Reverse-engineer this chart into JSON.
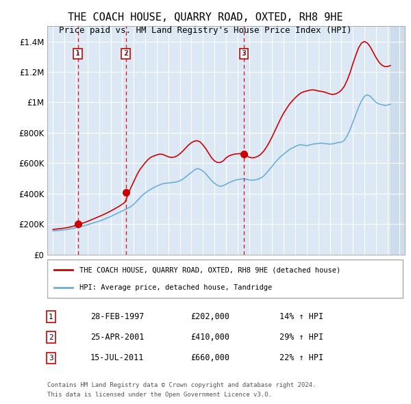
{
  "title": "THE COACH HOUSE, QUARRY ROAD, OXTED, RH8 9HE",
  "subtitle": "Price paid vs. HM Land Registry's House Price Index (HPI)",
  "legend_line1": "THE COACH HOUSE, QUARRY ROAD, OXTED, RH8 9HE (detached house)",
  "legend_line2": "HPI: Average price, detached house, Tandridge",
  "footer1": "Contains HM Land Registry data © Crown copyright and database right 2024.",
  "footer2": "This data is licensed under the Open Government Licence v3.0.",
  "purchases": [
    {
      "num": 1,
      "date": "28-FEB-1997",
      "price": 202000,
      "hpi_pct": "14%",
      "year": 1997.15
    },
    {
      "num": 2,
      "date": "25-APR-2001",
      "price": 410000,
      "hpi_pct": "29%",
      "year": 2001.32
    },
    {
      "num": 3,
      "date": "15-JUL-2011",
      "price": 660000,
      "hpi_pct": "22%",
      "year": 2011.54
    }
  ],
  "hpi_color": "#6baed6",
  "price_color": "#cc0000",
  "purchase_dot_color": "#cc0000",
  "background_color": "#dce9f5",
  "hatch_color": "#c8d8e8",
  "dashed_line_color": "#cc0000",
  "ylim": [
    0,
    1500000
  ],
  "yticks": [
    0,
    200000,
    400000,
    600000,
    800000,
    1000000,
    1200000,
    1400000
  ],
  "xlim": [
    1994.5,
    2025.5
  ],
  "hpi_data_x": [
    1995,
    1995.25,
    1995.5,
    1995.75,
    1996,
    1996.25,
    1996.5,
    1996.75,
    1997,
    1997.25,
    1997.5,
    1997.75,
    1998,
    1998.25,
    1998.5,
    1998.75,
    1999,
    1999.25,
    1999.5,
    1999.75,
    2000,
    2000.25,
    2000.5,
    2000.75,
    2001,
    2001.25,
    2001.5,
    2001.75,
    2002,
    2002.25,
    2002.5,
    2002.75,
    2003,
    2003.25,
    2003.5,
    2003.75,
    2004,
    2004.25,
    2004.5,
    2004.75,
    2005,
    2005.25,
    2005.5,
    2005.75,
    2006,
    2006.25,
    2006.5,
    2006.75,
    2007,
    2007.25,
    2007.5,
    2007.75,
    2008,
    2008.25,
    2008.5,
    2008.75,
    2009,
    2009.25,
    2009.5,
    2009.75,
    2010,
    2010.25,
    2010.5,
    2010.75,
    2011,
    2011.25,
    2011.5,
    2011.75,
    2012,
    2012.25,
    2012.5,
    2012.75,
    2013,
    2013.25,
    2013.5,
    2013.75,
    2014,
    2014.25,
    2014.5,
    2014.75,
    2015,
    2015.25,
    2015.5,
    2015.75,
    2016,
    2016.25,
    2016.5,
    2016.75,
    2017,
    2017.25,
    2017.5,
    2017.75,
    2018,
    2018.25,
    2018.5,
    2018.75,
    2019,
    2019.25,
    2019.5,
    2019.75,
    2020,
    2020.25,
    2020.5,
    2020.75,
    2021,
    2021.25,
    2021.5,
    2021.75,
    2022,
    2022.25,
    2022.5,
    2022.75,
    2023,
    2023.25,
    2023.5,
    2023.75,
    2024,
    2024.25
  ],
  "hpi_data_y": [
    155000,
    157000,
    158000,
    160000,
    162000,
    165000,
    168000,
    172000,
    176000,
    180000,
    185000,
    190000,
    196000,
    202000,
    208000,
    213000,
    219000,
    226000,
    234000,
    242000,
    250000,
    259000,
    268000,
    277000,
    286000,
    295000,
    305000,
    315000,
    330000,
    350000,
    370000,
    390000,
    405000,
    418000,
    430000,
    440000,
    450000,
    458000,
    465000,
    468000,
    470000,
    472000,
    475000,
    478000,
    485000,
    495000,
    510000,
    525000,
    540000,
    555000,
    565000,
    560000,
    548000,
    530000,
    508000,
    485000,
    468000,
    455000,
    448000,
    452000,
    462000,
    472000,
    480000,
    488000,
    492000,
    495000,
    498000,
    495000,
    490000,
    488000,
    490000,
    495000,
    502000,
    515000,
    535000,
    558000,
    580000,
    605000,
    625000,
    645000,
    660000,
    675000,
    690000,
    700000,
    710000,
    718000,
    722000,
    718000,
    715000,
    720000,
    725000,
    728000,
    730000,
    732000,
    730000,
    728000,
    725000,
    728000,
    732000,
    736000,
    738000,
    750000,
    780000,
    820000,
    870000,
    920000,
    970000,
    1010000,
    1040000,
    1050000,
    1040000,
    1020000,
    1000000,
    990000,
    985000,
    980000,
    982000,
    988000
  ],
  "price_data_x": [
    1995,
    1995.25,
    1995.5,
    1995.75,
    1996,
    1996.25,
    1996.5,
    1996.75,
    1997,
    1997.25,
    1997.5,
    1997.75,
    1998,
    1998.25,
    1998.5,
    1998.75,
    1999,
    1999.25,
    1999.5,
    1999.75,
    2000,
    2000.25,
    2000.5,
    2000.75,
    2001,
    2001.25,
    2001.5,
    2001.75,
    2002,
    2002.25,
    2002.5,
    2002.75,
    2003,
    2003.25,
    2003.5,
    2003.75,
    2004,
    2004.25,
    2004.5,
    2004.75,
    2005,
    2005.25,
    2005.5,
    2005.75,
    2006,
    2006.25,
    2006.5,
    2006.75,
    2007,
    2007.25,
    2007.5,
    2007.75,
    2008,
    2008.25,
    2008.5,
    2008.75,
    2009,
    2009.25,
    2009.5,
    2009.75,
    2010,
    2010.25,
    2010.5,
    2010.75,
    2011,
    2011.25,
    2011.5,
    2011.75,
    2012,
    2012.25,
    2012.5,
    2012.75,
    2013,
    2013.25,
    2013.5,
    2013.75,
    2014,
    2014.25,
    2014.5,
    2014.75,
    2015,
    2015.25,
    2015.5,
    2015.75,
    2016,
    2016.25,
    2016.5,
    2016.75,
    2017,
    2017.25,
    2017.5,
    2017.75,
    2018,
    2018.25,
    2018.5,
    2018.75,
    2019,
    2019.25,
    2019.5,
    2019.75,
    2020,
    2020.25,
    2020.5,
    2020.75,
    2021,
    2021.25,
    2021.5,
    2021.75,
    2022,
    2022.25,
    2022.5,
    2022.75,
    2023,
    2023.25,
    2023.5,
    2023.75,
    2024,
    2024.25
  ],
  "price_data_y": [
    165000,
    167000,
    169000,
    171000,
    174000,
    177000,
    181000,
    186000,
    191000,
    197000,
    204000,
    211000,
    218000,
    226000,
    234000,
    242000,
    250000,
    258000,
    267000,
    276000,
    286000,
    296000,
    307000,
    318000,
    330000,
    345000,
    395000,
    440000,
    480000,
    520000,
    555000,
    580000,
    605000,
    625000,
    640000,
    648000,
    655000,
    660000,
    658000,
    650000,
    642000,
    638000,
    640000,
    648000,
    662000,
    680000,
    700000,
    720000,
    735000,
    745000,
    748000,
    740000,
    720000,
    695000,
    665000,
    635000,
    615000,
    605000,
    605000,
    615000,
    635000,
    648000,
    655000,
    660000,
    662000,
    663000,
    660000,
    650000,
    640000,
    635000,
    638000,
    645000,
    658000,
    678000,
    705000,
    738000,
    775000,
    815000,
    855000,
    895000,
    930000,
    960000,
    988000,
    1010000,
    1030000,
    1048000,
    1062000,
    1070000,
    1075000,
    1080000,
    1082000,
    1080000,
    1075000,
    1072000,
    1068000,
    1062000,
    1055000,
    1052000,
    1055000,
    1065000,
    1080000,
    1105000,
    1145000,
    1195000,
    1255000,
    1310000,
    1360000,
    1390000,
    1400000,
    1390000,
    1365000,
    1330000,
    1295000,
    1265000,
    1245000,
    1235000,
    1235000,
    1242000
  ]
}
